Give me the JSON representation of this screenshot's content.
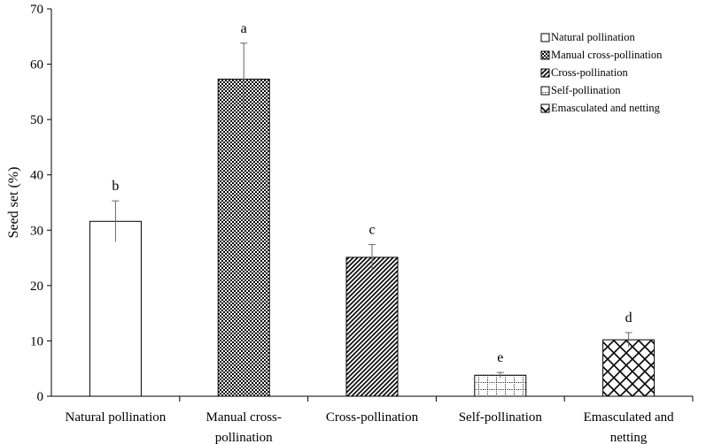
{
  "chart_data": {
    "type": "bar",
    "title": "",
    "xlabel": "",
    "ylabel": "Seed set (%)",
    "ylim": [
      0,
      70
    ],
    "yticks": [
      0,
      10,
      20,
      30,
      40,
      50,
      60,
      70
    ],
    "grid": false,
    "legend_position": "top-right",
    "categories": [
      {
        "label_lines": [
          "Natural pollination"
        ],
        "legend": "Natural pollination",
        "value": 31.6,
        "error": 3.7,
        "significance": "b",
        "pattern": "none"
      },
      {
        "label_lines": [
          "Manual cross-",
          "pollination"
        ],
        "legend": "Manual cross-pollination",
        "value": 57.3,
        "error": 6.5,
        "significance": "a",
        "pattern": "checker"
      },
      {
        "label_lines": [
          "Cross-pollination"
        ],
        "legend": "Cross-pollination",
        "value": 25.1,
        "error": 2.3,
        "significance": "c",
        "pattern": "diagonal"
      },
      {
        "label_lines": [
          "Self-pollination"
        ],
        "legend": "Self-pollination",
        "value": 3.8,
        "error": 0.5,
        "significance": "e",
        "pattern": "dotted-grid"
      },
      {
        "label_lines": [
          "Emasculated and",
          "netting"
        ],
        "legend": "Emasculated and netting",
        "value": 10.2,
        "error": 1.3,
        "significance": "d",
        "pattern": "lattice"
      }
    ]
  },
  "colors": {
    "bar_fill": "#ffffff",
    "bar_stroke": "#000000",
    "pattern_ink": "#000000",
    "error_bar": "#666666",
    "axis": "#000000"
  }
}
